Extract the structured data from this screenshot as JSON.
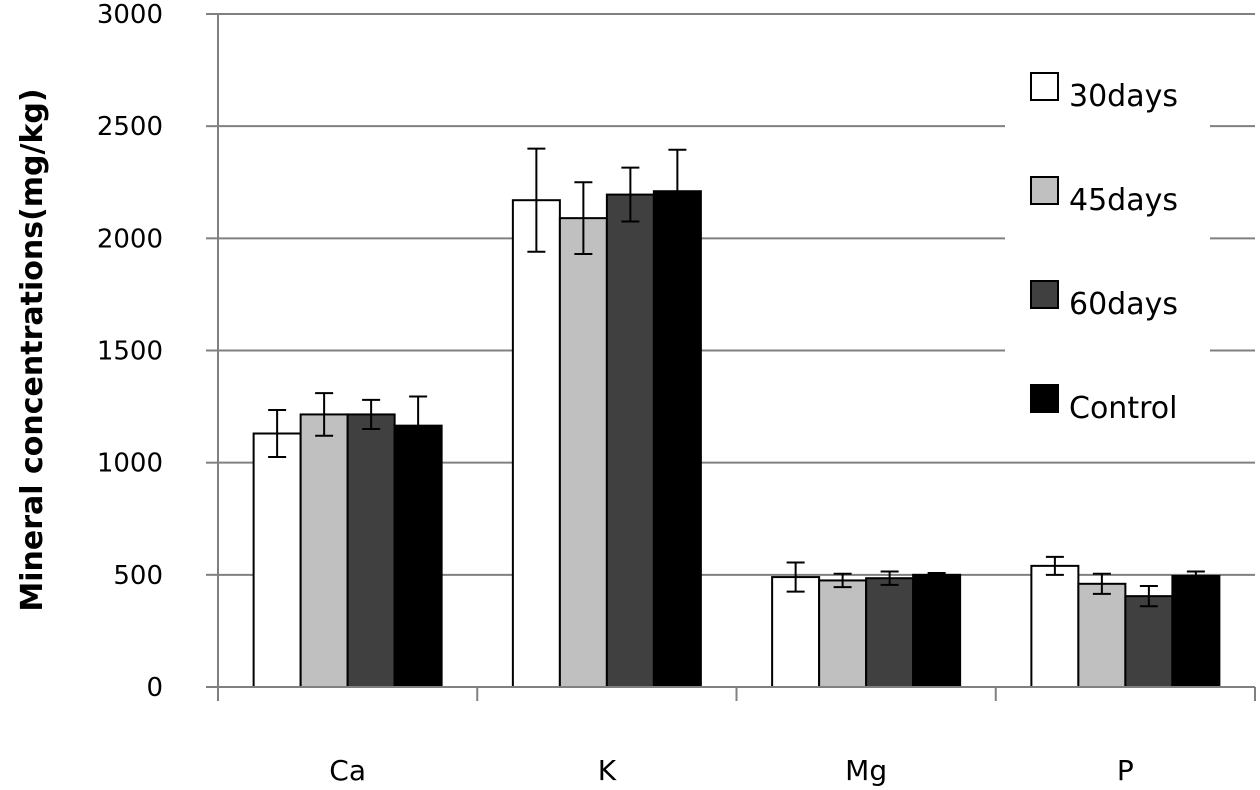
{
  "chart_data": {
    "type": "bar",
    "title": "",
    "xlabel": "",
    "ylabel": "Mineral concentrations(mg/kg)",
    "ylim": [
      0,
      3000
    ],
    "yticks": [
      "0",
      "500",
      "1000",
      "1500",
      "2000",
      "2500",
      "3000"
    ],
    "ytick_values": [
      0,
      500,
      1000,
      1500,
      2000,
      2500,
      3000
    ],
    "grid": true,
    "legend_position": "top-right",
    "categories": [
      "Ca",
      "K",
      "Mg",
      "P"
    ],
    "series": [
      {
        "name": "30days",
        "color": "#ffffff",
        "values": [
          1130,
          2170,
          490,
          540
        ],
        "errors": [
          105,
          230,
          65,
          40
        ]
      },
      {
        "name": "45days",
        "color": "#c0c0c0",
        "values": [
          1215,
          2090,
          475,
          460
        ],
        "errors": [
          95,
          160,
          30,
          45
        ]
      },
      {
        "name": "60days",
        "color": "#404040",
        "values": [
          1215,
          2195,
          485,
          405
        ],
        "errors": [
          65,
          120,
          30,
          45
        ]
      },
      {
        "name": "Control",
        "color": "#000000",
        "values": [
          1165,
          2210,
          500,
          495
        ],
        "errors": [
          130,
          185,
          8,
          20
        ]
      }
    ]
  }
}
